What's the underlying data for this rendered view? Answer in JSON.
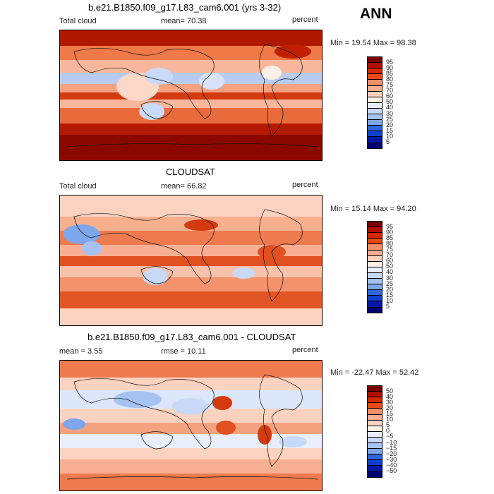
{
  "season": "ANN",
  "panels": [
    {
      "title": "b.e21.B1850.f09_g17.L83_cam6.001 (yrs 3-32)",
      "left_label": "Total cloud",
      "stat_text": "mean=   70.38",
      "units": "percent",
      "minmax": "Min =   19.54  Max =   98.38",
      "colorbar": {
        "colors": [
          "#7a0000",
          "#b00f00",
          "#d42800",
          "#e54a14",
          "#ee6b3c",
          "#f48e68",
          "#f8ae92",
          "#fbd2bf",
          "#fcefe6",
          "#e8eefb",
          "#c8d9f7",
          "#a5c2f2",
          "#7ea6ec",
          "#5689e6",
          "#2f66dc",
          "#1140cc",
          "#0018a8",
          "#000070"
        ],
        "labels": [
          "95",
          "90",
          "85",
          "80",
          "75",
          "70",
          "60",
          "50",
          "40",
          "30",
          "25",
          "20",
          "15",
          "10",
          "5"
        ]
      }
    },
    {
      "title": "CLOUDSAT",
      "left_label": "Total cloud",
      "stat_text": "mean=   66.82",
      "units": "percent",
      "minmax": "Min =   15.14  Max =   94.20",
      "colorbar": {
        "colors": [
          "#7a0000",
          "#b00f00",
          "#d42800",
          "#e54a14",
          "#ee6b3c",
          "#f48e68",
          "#f8ae92",
          "#fbd2bf",
          "#fcefe6",
          "#e8eefb",
          "#c8d9f7",
          "#a5c2f2",
          "#7ea6ec",
          "#5689e6",
          "#2f66dc",
          "#1140cc",
          "#0018a8",
          "#000070"
        ],
        "labels": [
          "95",
          "90",
          "85",
          "80",
          "75",
          "70",
          "60",
          "50",
          "40",
          "30",
          "25",
          "20",
          "15",
          "10",
          "5"
        ]
      }
    },
    {
      "title": "b.e21.B1850.f09_g17.L83_cam6.001 - CLOUDSAT",
      "left_label": "mean =    3.55",
      "stat_text": "rmse =   10.11",
      "units": "percent",
      "minmax": "Min =  -22.47  Max =   52.42",
      "colorbar": {
        "colors": [
          "#7a0000",
          "#b00f00",
          "#d42800",
          "#e54a14",
          "#ee6b3c",
          "#f48e68",
          "#f8ae92",
          "#fbd2bf",
          "#fcefe6",
          "#e8eefb",
          "#c8d9f7",
          "#a5c2f2",
          "#7ea6ec",
          "#5689e6",
          "#2f66dc",
          "#1140cc",
          "#0018a8",
          "#000070"
        ],
        "labels": [
          "50",
          "40",
          "30",
          "20",
          "15",
          "10",
          "5",
          "0",
          "−5",
          "−10",
          "−15",
          "−20",
          "−30",
          "−40",
          "−50"
        ]
      }
    }
  ]
}
